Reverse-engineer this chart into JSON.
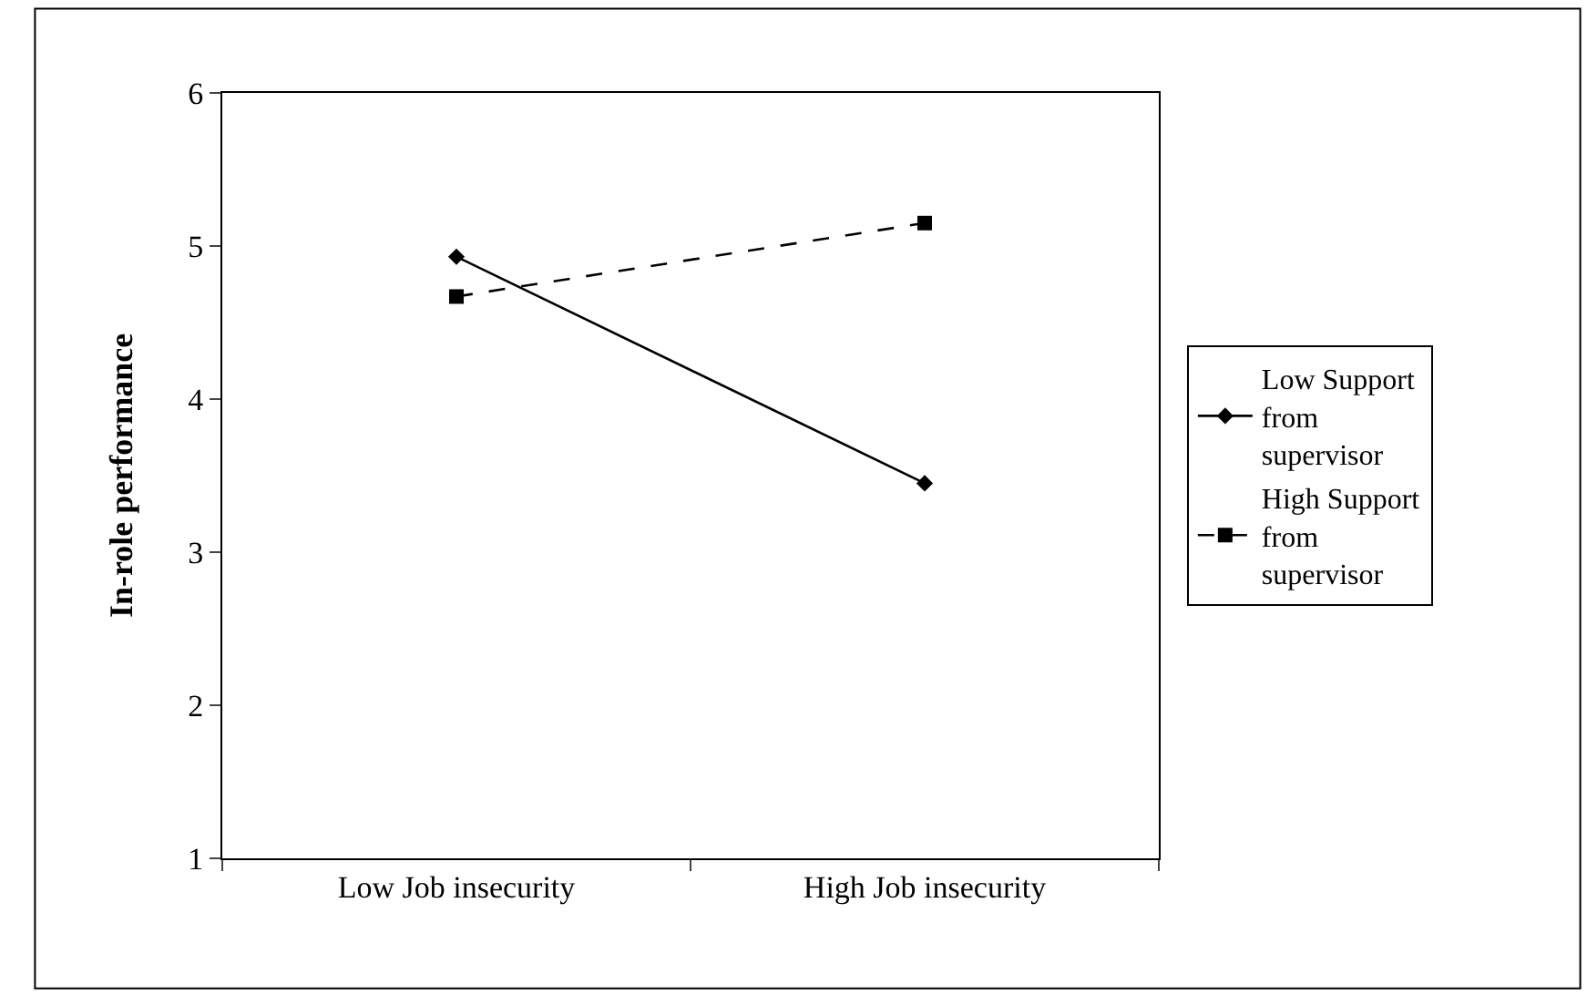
{
  "chart_data": {
    "type": "line",
    "ylabel": "In-role performance",
    "categories": [
      "Low Job insecurity",
      "High Job insecurity"
    ],
    "series": [
      {
        "name": "Low Support from supervisor",
        "color": "#000000",
        "values": [
          4.93,
          3.45
        ],
        "marker": "diamond",
        "line_style": "solid"
      },
      {
        "name": "High Support from supervisor",
        "color": "#000000",
        "values": [
          4.67,
          5.15
        ],
        "marker": "square",
        "line_style": "dashed"
      }
    ],
    "ylim": [
      1,
      6
    ],
    "yticks": [
      1,
      2,
      3,
      4,
      5,
      6
    ],
    "grid": false,
    "legend": "right"
  }
}
